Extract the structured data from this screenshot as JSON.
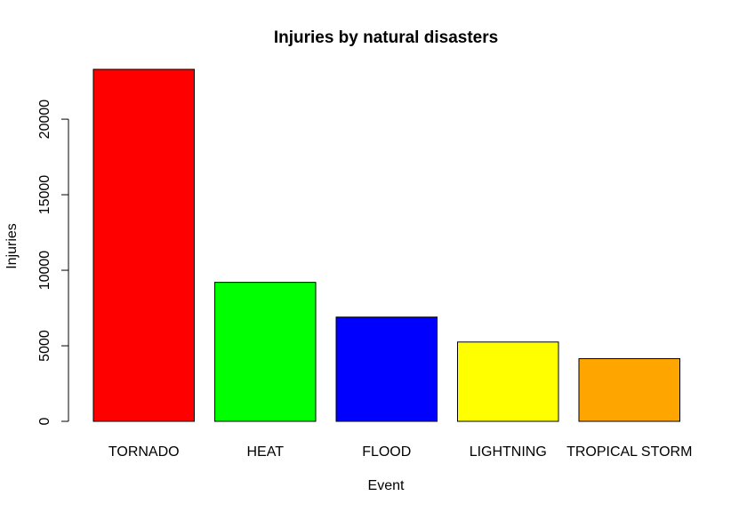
{
  "chart_data": {
    "type": "bar",
    "title": "Injuries by natural disasters",
    "xlabel": "Event",
    "ylabel": "Injuries",
    "categories": [
      "TORNADO",
      "HEAT",
      "FLOOD",
      "LIGHTNING",
      "TROPICAL STORM"
    ],
    "values": [
      23300,
      9200,
      6900,
      5250,
      4150
    ],
    "colors": [
      "#ff0000",
      "#00ff00",
      "#0000ff",
      "#ffff00",
      "#ffa500"
    ],
    "yticks": [
      0,
      5000,
      10000,
      15000,
      20000
    ],
    "ylim": [
      0,
      23300
    ],
    "grid": false,
    "legend": "none"
  }
}
